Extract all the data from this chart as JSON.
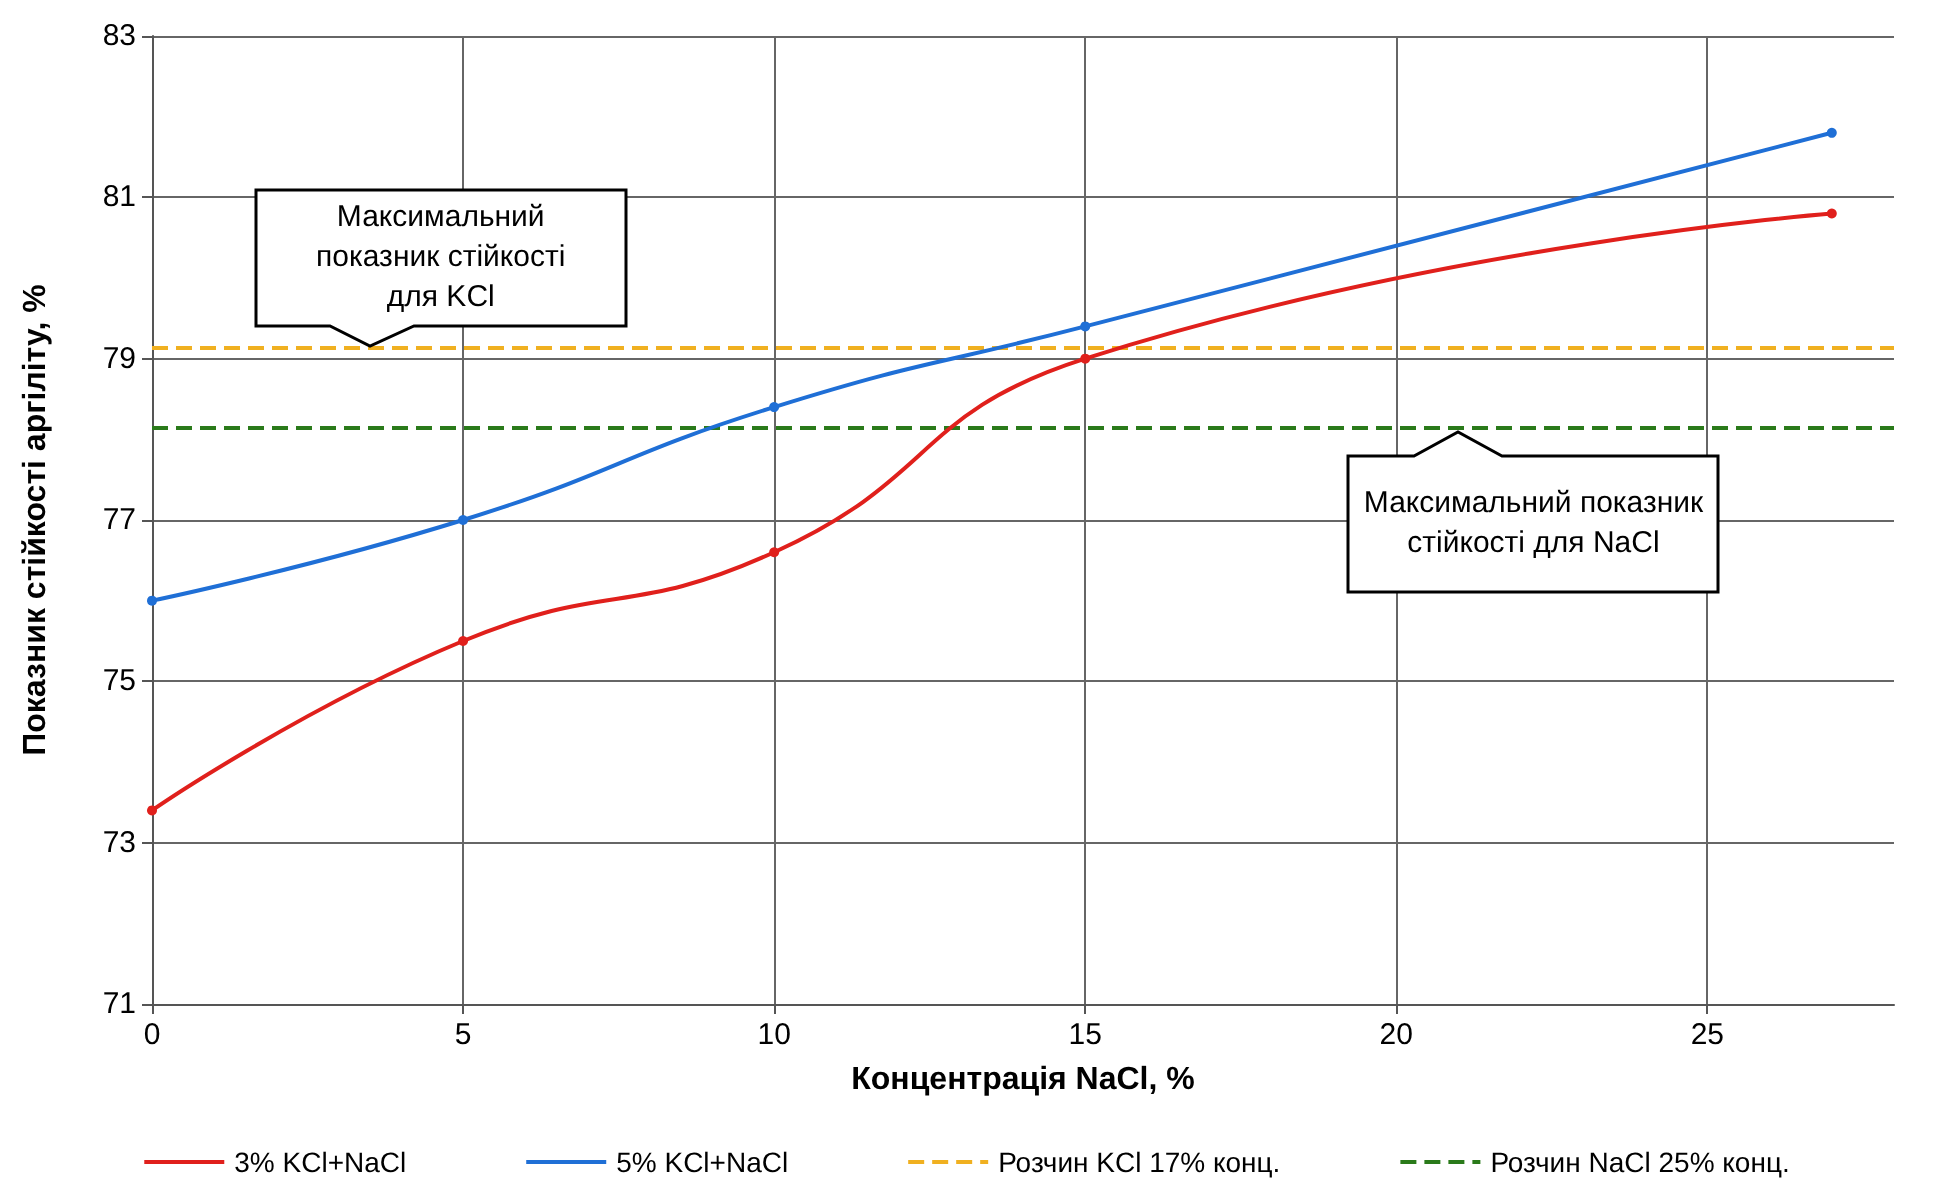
{
  "chart_data": {
    "type": "line",
    "xlabel": "Концентрація NaCl, %",
    "ylabel": "Показник стійкості аргіліту, %",
    "x": [
      0,
      5,
      10,
      15,
      27
    ],
    "series": [
      {
        "name": "3% KCl+NaCl",
        "color": "#e0201c",
        "values": [
          73.4,
          75.5,
          76.6,
          79.0,
          80.8
        ]
      },
      {
        "name": "5% KCl+NaCl",
        "color": "#1f6fd6",
        "values": [
          76.0,
          77.0,
          78.4,
          79.4,
          81.8
        ]
      }
    ],
    "ref_lines": [
      {
        "axis": "y",
        "value": 79.15,
        "label": "Розчин KCl 17% конц.",
        "color": "#f0b020",
        "line_style": "dashed"
      },
      {
        "axis": "y",
        "value": 78.15,
        "label": "Розчин NaCl 25% конц.",
        "color": "#2a7a1a",
        "line_style": "dashed"
      }
    ],
    "annotations": [
      {
        "text": "Максимальний показник стійкості для KCl",
        "x": 3.5,
        "y": 79.15
      },
      {
        "text": "Максимальний показник стійкості для NaCl",
        "x": 21,
        "y": 78.15
      }
    ],
    "xlim": [
      0,
      28
    ],
    "xticks": [
      0,
      5,
      10,
      15,
      20,
      25
    ],
    "ylim": [
      71,
      83
    ],
    "yticks": [
      71,
      73,
      75,
      77,
      79,
      81,
      83
    ],
    "grid": true,
    "legend": "bottom",
    "marker": "circle",
    "line_style": "solid"
  }
}
